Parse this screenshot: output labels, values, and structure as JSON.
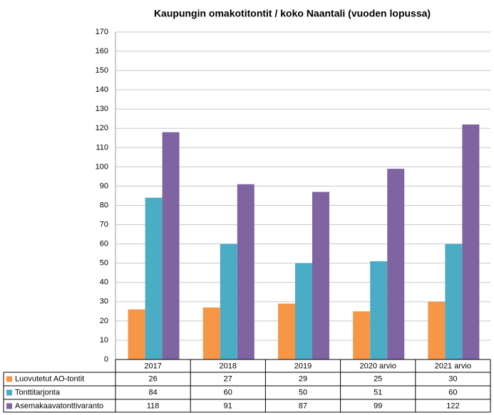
{
  "chart_data": {
    "type": "bar",
    "title": "Kaupungin omakotitontit / koko Naantali (vuoden lopussa)",
    "categories": [
      "2017",
      "2018",
      "2019",
      "2020 arvio",
      "2021 arvio"
    ],
    "series": [
      {
        "name": "Luovutetut AO-tontit",
        "color": "#f79646",
        "values": [
          26,
          27,
          29,
          25,
          30
        ]
      },
      {
        "name": "Tonttitarjonta",
        "color": "#4bacc6",
        "values": [
          84,
          60,
          50,
          51,
          60
        ]
      },
      {
        "name": "Asemakaavatonttivaranto",
        "color": "#8064a2",
        "values": [
          118,
          91,
          87,
          99,
          122
        ]
      }
    ],
    "ylim": [
      0,
      170
    ],
    "yticks": [
      0,
      10,
      20,
      30,
      40,
      50,
      60,
      70,
      80,
      90,
      100,
      110,
      120,
      130,
      140,
      150,
      160,
      170
    ],
    "grid": true
  }
}
